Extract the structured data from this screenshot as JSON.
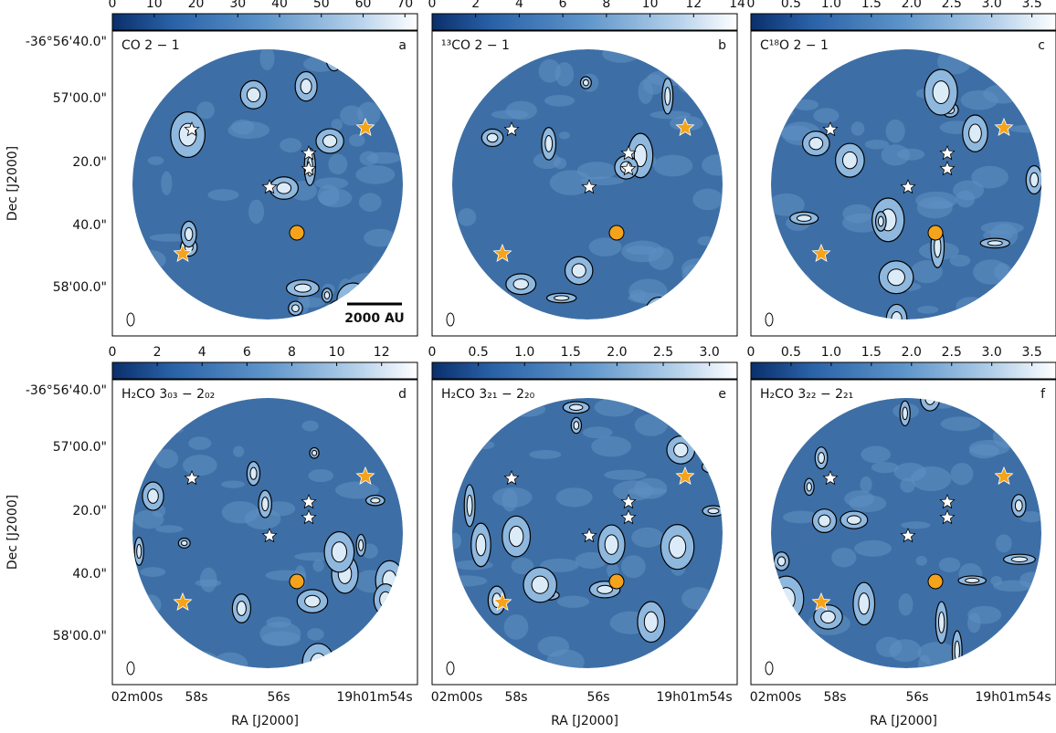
{
  "figure": {
    "ylabel": "Dec [J2000]",
    "xlabel": "RA [J2000]",
    "yticklabels": [
      "-36°56'40.0\"",
      "57'00.0\"",
      "20.0\"",
      "40.0\"",
      "58'00.0\""
    ],
    "xticklabels": [
      "02m00s",
      "58s",
      "56s",
      "19h01m54s"
    ],
    "scale_bar": "2000 AU"
  },
  "chart_data": [
    {
      "type": "image",
      "title": "CO 2 − 1",
      "panel": "a",
      "clim": [
        0,
        73
      ],
      "cticks": [
        0,
        10,
        20,
        30,
        40,
        50,
        60,
        70
      ]
    },
    {
      "type": "image",
      "title": "¹³CO 2 − 1",
      "panel": "b",
      "clim": [
        0,
        14
      ],
      "cticks": [
        0,
        2,
        4,
        6,
        8,
        10,
        12,
        14
      ]
    },
    {
      "type": "image",
      "title": "C¹⁸O 2 − 1",
      "panel": "c",
      "clim": [
        0,
        3.8
      ],
      "cticks": [
        0,
        0.5,
        {
          "value": 1,
          "label": "1.0"
        },
        1.5,
        {
          "value": 2,
          "label": "2.0"
        },
        2.5,
        {
          "value": 3,
          "label": "3.0"
        },
        3.5
      ]
    },
    {
      "type": "image",
      "title": "H₂CO 3₀₃ − 2₀₂",
      "panel": "d",
      "clim": [
        0,
        13.6
      ],
      "cticks": [
        0,
        2,
        4,
        6,
        8,
        10,
        12
      ]
    },
    {
      "type": "image",
      "title": "H₂CO 3₂₁ − 2₂₀",
      "panel": "e",
      "clim": [
        0,
        3.3
      ],
      "cticks": [
        0,
        0.5,
        {
          "value": 1,
          "label": "1.0"
        },
        1.5,
        {
          "value": 2,
          "label": "2.0"
        },
        2.5,
        {
          "value": 3,
          "label": "3.0"
        }
      ]
    },
    {
      "type": "image",
      "title": "H₂CO 3₂₂ − 2₂₁",
      "panel": "f",
      "clim": [
        0,
        3.8
      ],
      "cticks": [
        0,
        0.5,
        {
          "value": 1,
          "label": "1.0"
        },
        1.5,
        {
          "value": 2,
          "label": "2.0"
        },
        2.5,
        {
          "value": 3,
          "label": "3.0"
        },
        3.5
      ]
    }
  ]
}
